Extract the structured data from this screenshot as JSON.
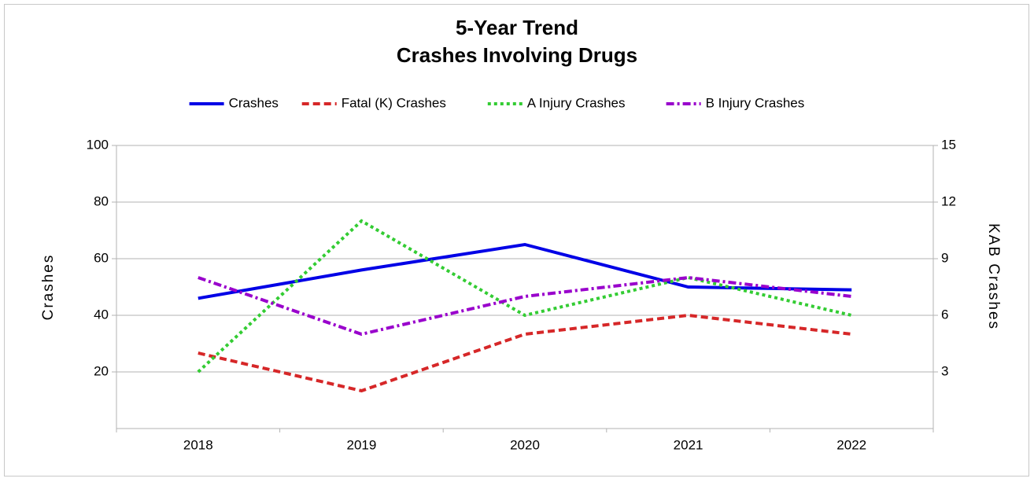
{
  "chart_data": {
    "type": "line",
    "title": "5-Year Trend",
    "subtitle": "Crashes Involving Drugs",
    "categories": [
      "2018",
      "2019",
      "2020",
      "2021",
      "2022"
    ],
    "y_label": "Crashes",
    "y2_label": "KAB Crashes",
    "ylim": [
      0,
      100
    ],
    "yticks": [
      20,
      40,
      60,
      80,
      100
    ],
    "y2lim": [
      0,
      15
    ],
    "y2ticks": [
      3,
      6,
      9,
      12,
      15
    ],
    "grid": true,
    "legend": "top",
    "series": [
      {
        "name": "Crashes",
        "color": "#0000e6",
        "dash": "solid",
        "values": [
          46,
          56,
          65,
          50,
          49
        ]
      },
      {
        "name": "Fatal (K) Crashes",
        "color": "#d62728",
        "dash": "dashed",
        "axis": "y2",
        "values": [
          4,
          2,
          5,
          6,
          5
        ]
      },
      {
        "name": "A Injury Crashes",
        "color": "#33cc33",
        "dash": "dotted",
        "axis": "y2",
        "values": [
          3,
          11,
          6,
          8,
          6
        ]
      },
      {
        "name": "B Injury Crashes",
        "color": "#9900cc",
        "dash": "dashdot",
        "axis": "y2",
        "values": [
          8,
          5,
          7,
          8,
          7
        ]
      }
    ]
  }
}
